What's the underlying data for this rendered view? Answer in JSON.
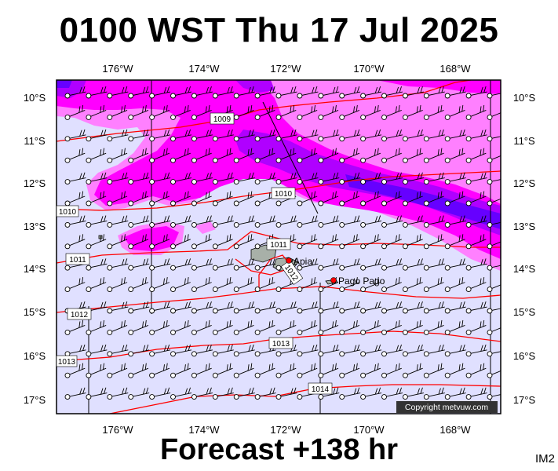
{
  "title": "0100 WST Thu 17 Jul 2025",
  "footer": "Forecast +138 hr",
  "corner_tag": "IM2",
  "copyright": "Copyright metvuw.com",
  "longitudes": [
    "176°W",
    "174°W",
    "172°W",
    "170°W",
    "168°W"
  ],
  "latitudes": [
    "10°S",
    "11°S",
    "12°S",
    "13°S",
    "14°S",
    "15°S",
    "16°S",
    "17°S"
  ],
  "isobar_labels": [
    "1009",
    "1010",
    "1010",
    "1011",
    "1011",
    "1012",
    "1012",
    "1013",
    "1013",
    "1014"
  ],
  "places": [
    "Apia",
    "Pago Pago"
  ],
  "colors": {
    "background_rain": "#e0e0ff",
    "light_rain": "#ff80ff",
    "medium_rain": "#ff00ff",
    "heavy_rain": "#b000ff",
    "very_heavy_rain": "#6600ff",
    "isobar": "#ff0000",
    "land": "#a8b0a8"
  }
}
